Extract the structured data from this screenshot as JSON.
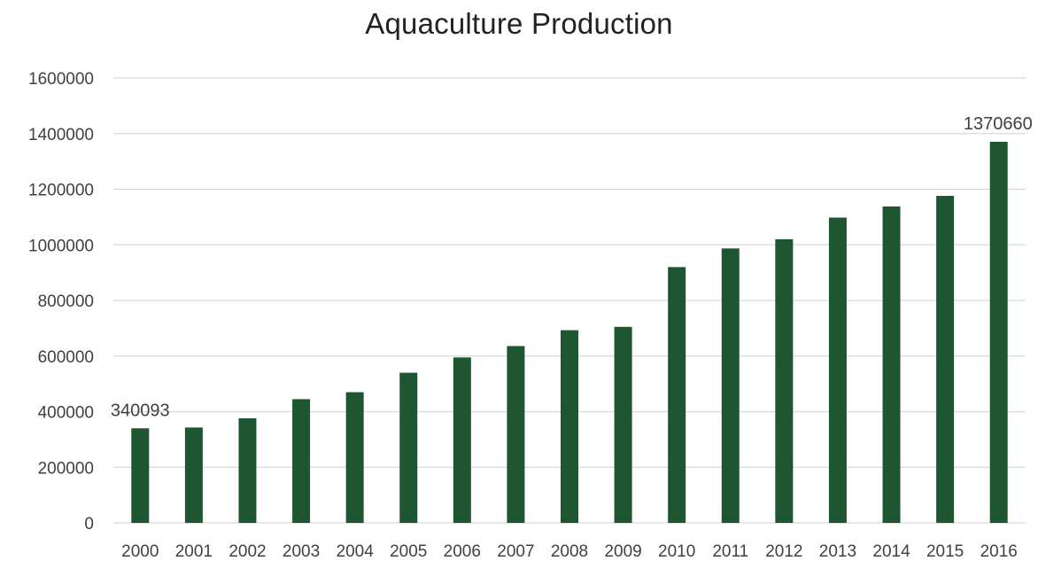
{
  "chart_data": {
    "type": "bar",
    "title": "Aquaculture Production",
    "xlabel": "",
    "ylabel": "",
    "categories": [
      "2000",
      "2001",
      "2002",
      "2003",
      "2004",
      "2005",
      "2006",
      "2007",
      "2008",
      "2009",
      "2010",
      "2011",
      "2012",
      "2013",
      "2014",
      "2015",
      "2016"
    ],
    "values": [
      340093,
      343000,
      376000,
      445000,
      470000,
      540000,
      595000,
      636000,
      693000,
      705000,
      920000,
      987000,
      1020000,
      1098000,
      1138000,
      1176000,
      1370660
    ],
    "data_labels": [
      {
        "category": "2000",
        "text": "340093"
      },
      {
        "category": "2016",
        "text": "1370660"
      }
    ],
    "ylim": [
      0,
      1600000
    ],
    "yticks": [
      "0",
      "200000",
      "400000",
      "600000",
      "800000",
      "1000000",
      "1200000",
      "1400000",
      "1600000"
    ],
    "grid": true,
    "legend": "none",
    "bar_color": "#1e5631"
  }
}
